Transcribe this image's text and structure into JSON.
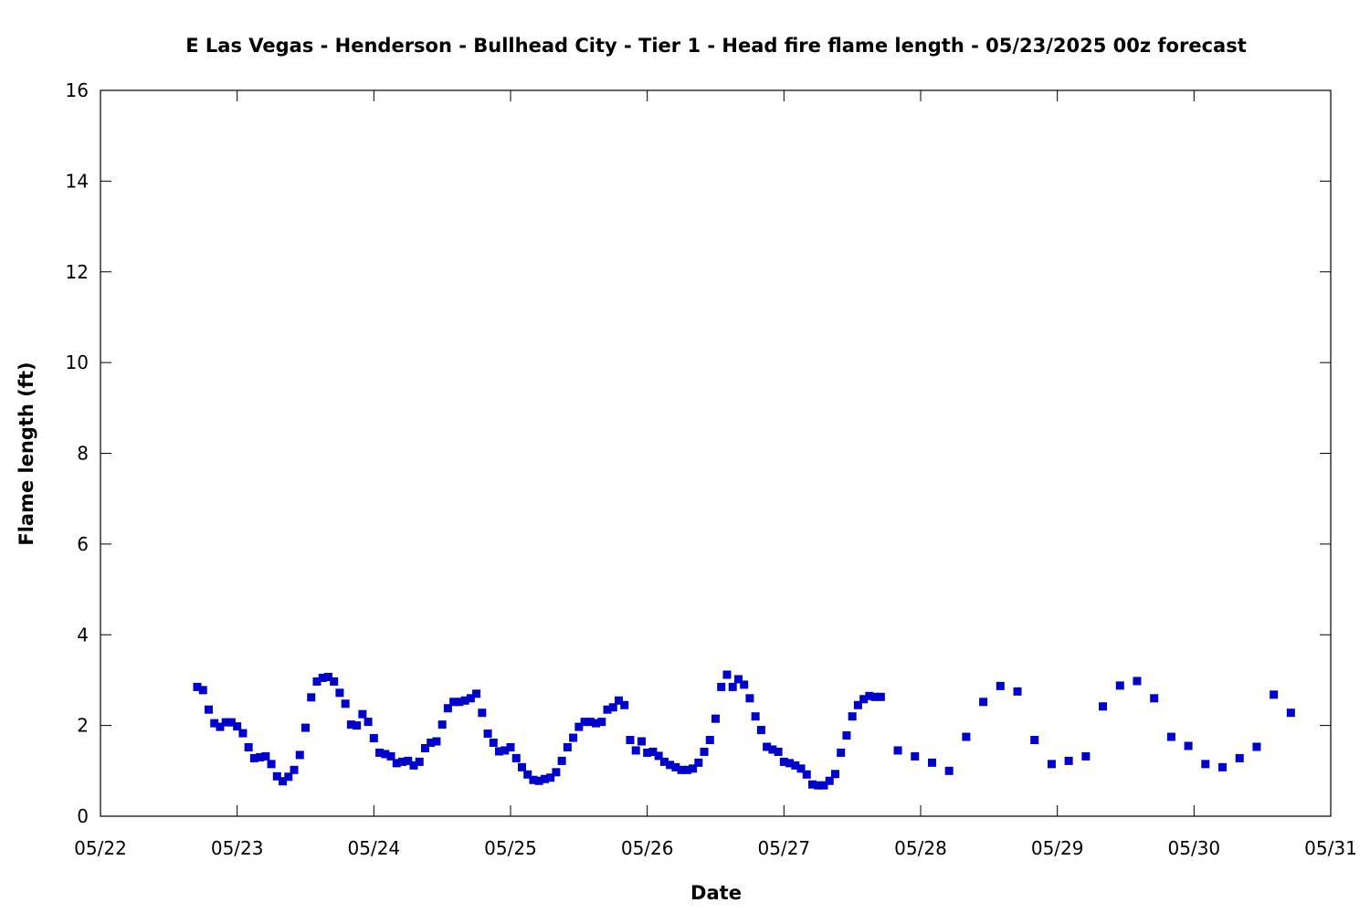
{
  "chart_data": {
    "type": "scatter",
    "title": "E Las Vegas - Henderson - Bullhead City - Tier 1 - Head fire flame length - 05/23/2025 00z forecast",
    "xlabel": "Date",
    "ylabel": "Flame length (ft)",
    "x_axis": {
      "scale": "date",
      "min": "2025-05-22T00:00",
      "max": "2025-05-31T00:00",
      "tick_labels": [
        "05/22",
        "05/23",
        "05/24",
        "05/25",
        "05/26",
        "05/27",
        "05/28",
        "05/29",
        "05/30",
        "05/31"
      ]
    },
    "y_axis": {
      "min": 0,
      "max": 16,
      "tick_labels": [
        "0",
        "2",
        "4",
        "6",
        "8",
        "10",
        "12",
        "14",
        "16"
      ]
    },
    "grid": false,
    "legend": "none",
    "marker_color": "#0000cc",
    "series": [
      {
        "points": [
          [
            "2025-05-22T17:00",
            2.85
          ],
          [
            "2025-05-22T18:00",
            2.78
          ],
          [
            "2025-05-22T19:00",
            2.35
          ],
          [
            "2025-05-22T20:00",
            2.05
          ],
          [
            "2025-05-22T21:00",
            1.97
          ],
          [
            "2025-05-22T22:00",
            2.07
          ],
          [
            "2025-05-22T23:00",
            2.07
          ],
          [
            "2025-05-23T00:00",
            1.98
          ],
          [
            "2025-05-23T01:00",
            1.83
          ],
          [
            "2025-05-23T02:00",
            1.52
          ],
          [
            "2025-05-23T03:00",
            1.28
          ],
          [
            "2025-05-23T04:00",
            1.3
          ],
          [
            "2025-05-23T05:00",
            1.32
          ],
          [
            "2025-05-23T06:00",
            1.15
          ],
          [
            "2025-05-23T07:00",
            0.88
          ],
          [
            "2025-05-23T08:00",
            0.77
          ],
          [
            "2025-05-23T09:00",
            0.87
          ],
          [
            "2025-05-23T10:00",
            1.02
          ],
          [
            "2025-05-23T11:00",
            1.35
          ],
          [
            "2025-05-23T12:00",
            1.95
          ],
          [
            "2025-05-23T13:00",
            2.62
          ],
          [
            "2025-05-23T14:00",
            2.97
          ],
          [
            "2025-05-23T15:00",
            3.05
          ],
          [
            "2025-05-23T16:00",
            3.07
          ],
          [
            "2025-05-23T17:00",
            2.97
          ],
          [
            "2025-05-23T18:00",
            2.72
          ],
          [
            "2025-05-23T19:00",
            2.48
          ],
          [
            "2025-05-23T20:00",
            2.02
          ],
          [
            "2025-05-23T21:00",
            2.0
          ],
          [
            "2025-05-23T22:00",
            2.25
          ],
          [
            "2025-05-23T23:00",
            2.08
          ],
          [
            "2025-05-24T00:00",
            1.72
          ],
          [
            "2025-05-24T01:00",
            1.4
          ],
          [
            "2025-05-24T02:00",
            1.37
          ],
          [
            "2025-05-24T03:00",
            1.32
          ],
          [
            "2025-05-24T04:00",
            1.17
          ],
          [
            "2025-05-24T05:00",
            1.2
          ],
          [
            "2025-05-24T06:00",
            1.22
          ],
          [
            "2025-05-24T07:00",
            1.12
          ],
          [
            "2025-05-24T08:00",
            1.2
          ],
          [
            "2025-05-24T09:00",
            1.5
          ],
          [
            "2025-05-24T10:00",
            1.62
          ],
          [
            "2025-05-24T11:00",
            1.65
          ],
          [
            "2025-05-24T12:00",
            2.02
          ],
          [
            "2025-05-24T13:00",
            2.38
          ],
          [
            "2025-05-24T14:00",
            2.52
          ],
          [
            "2025-05-24T15:00",
            2.52
          ],
          [
            "2025-05-24T16:00",
            2.55
          ],
          [
            "2025-05-24T17:00",
            2.6
          ],
          [
            "2025-05-24T18:00",
            2.7
          ],
          [
            "2025-05-24T19:00",
            2.28
          ],
          [
            "2025-05-24T20:00",
            1.82
          ],
          [
            "2025-05-24T21:00",
            1.62
          ],
          [
            "2025-05-24T22:00",
            1.43
          ],
          [
            "2025-05-24T23:00",
            1.45
          ],
          [
            "2025-05-25T00:00",
            1.52
          ],
          [
            "2025-05-25T01:00",
            1.28
          ],
          [
            "2025-05-25T02:00",
            1.08
          ],
          [
            "2025-05-25T03:00",
            0.92
          ],
          [
            "2025-05-25T04:00",
            0.8
          ],
          [
            "2025-05-25T05:00",
            0.78
          ],
          [
            "2025-05-25T06:00",
            0.82
          ],
          [
            "2025-05-25T07:00",
            0.85
          ],
          [
            "2025-05-25T08:00",
            0.97
          ],
          [
            "2025-05-25T09:00",
            1.22
          ],
          [
            "2025-05-25T10:00",
            1.52
          ],
          [
            "2025-05-25T11:00",
            1.73
          ],
          [
            "2025-05-25T12:00",
            1.97
          ],
          [
            "2025-05-25T13:00",
            2.08
          ],
          [
            "2025-05-25T14:00",
            2.08
          ],
          [
            "2025-05-25T15:00",
            2.05
          ],
          [
            "2025-05-25T16:00",
            2.08
          ],
          [
            "2025-05-25T17:00",
            2.35
          ],
          [
            "2025-05-25T18:00",
            2.4
          ],
          [
            "2025-05-25T19:00",
            2.55
          ],
          [
            "2025-05-25T20:00",
            2.45
          ],
          [
            "2025-05-25T21:00",
            1.68
          ],
          [
            "2025-05-25T22:00",
            1.45
          ],
          [
            "2025-05-25T23:00",
            1.65
          ],
          [
            "2025-05-26T00:00",
            1.4
          ],
          [
            "2025-05-26T01:00",
            1.42
          ],
          [
            "2025-05-26T02:00",
            1.33
          ],
          [
            "2025-05-26T03:00",
            1.2
          ],
          [
            "2025-05-26T04:00",
            1.13
          ],
          [
            "2025-05-26T05:00",
            1.08
          ],
          [
            "2025-05-26T06:00",
            1.02
          ],
          [
            "2025-05-26T07:00",
            1.02
          ],
          [
            "2025-05-26T08:00",
            1.05
          ],
          [
            "2025-05-26T09:00",
            1.18
          ],
          [
            "2025-05-26T10:00",
            1.42
          ],
          [
            "2025-05-26T11:00",
            1.68
          ],
          [
            "2025-05-26T12:00",
            2.15
          ],
          [
            "2025-05-26T13:00",
            2.85
          ],
          [
            "2025-05-26T14:00",
            3.12
          ],
          [
            "2025-05-26T15:00",
            2.85
          ],
          [
            "2025-05-26T16:00",
            3.02
          ],
          [
            "2025-05-26T17:00",
            2.9
          ],
          [
            "2025-05-26T18:00",
            2.6
          ],
          [
            "2025-05-26T19:00",
            2.2
          ],
          [
            "2025-05-26T20:00",
            1.9
          ],
          [
            "2025-05-26T21:00",
            1.53
          ],
          [
            "2025-05-26T22:00",
            1.47
          ],
          [
            "2025-05-26T23:00",
            1.42
          ],
          [
            "2025-05-27T00:00",
            1.2
          ],
          [
            "2025-05-27T01:00",
            1.17
          ],
          [
            "2025-05-27T02:00",
            1.12
          ],
          [
            "2025-05-27T03:00",
            1.05
          ],
          [
            "2025-05-27T04:00",
            0.92
          ],
          [
            "2025-05-27T05:00",
            0.7
          ],
          [
            "2025-05-27T06:00",
            0.68
          ],
          [
            "2025-05-27T07:00",
            0.68
          ],
          [
            "2025-05-27T08:00",
            0.78
          ],
          [
            "2025-05-27T09:00",
            0.93
          ],
          [
            "2025-05-27T10:00",
            1.4
          ],
          [
            "2025-05-27T11:00",
            1.78
          ],
          [
            "2025-05-27T12:00",
            2.2
          ],
          [
            "2025-05-27T13:00",
            2.45
          ],
          [
            "2025-05-27T14:00",
            2.58
          ],
          [
            "2025-05-27T15:00",
            2.65
          ],
          [
            "2025-05-27T16:00",
            2.63
          ],
          [
            "2025-05-27T17:00",
            2.63
          ],
          [
            "2025-05-27T20:00",
            1.45
          ],
          [
            "2025-05-27T23:00",
            1.32
          ],
          [
            "2025-05-28T02:00",
            1.18
          ],
          [
            "2025-05-28T05:00",
            1.0
          ],
          [
            "2025-05-28T08:00",
            1.75
          ],
          [
            "2025-05-28T11:00",
            2.52
          ],
          [
            "2025-05-28T14:00",
            2.87
          ],
          [
            "2025-05-28T17:00",
            2.75
          ],
          [
            "2025-05-28T20:00",
            1.68
          ],
          [
            "2025-05-28T23:00",
            1.15
          ],
          [
            "2025-05-29T02:00",
            1.22
          ],
          [
            "2025-05-29T05:00",
            1.32
          ],
          [
            "2025-05-29T08:00",
            2.42
          ],
          [
            "2025-05-29T11:00",
            2.88
          ],
          [
            "2025-05-29T14:00",
            2.98
          ],
          [
            "2025-05-29T17:00",
            2.6
          ],
          [
            "2025-05-29T20:00",
            1.75
          ],
          [
            "2025-05-29T23:00",
            1.55
          ],
          [
            "2025-05-30T02:00",
            1.15
          ],
          [
            "2025-05-30T05:00",
            1.08
          ],
          [
            "2025-05-30T08:00",
            1.28
          ],
          [
            "2025-05-30T11:00",
            1.53
          ],
          [
            "2025-05-30T14:00",
            2.68
          ],
          [
            "2025-05-30T17:00",
            2.28
          ]
        ]
      }
    ]
  }
}
